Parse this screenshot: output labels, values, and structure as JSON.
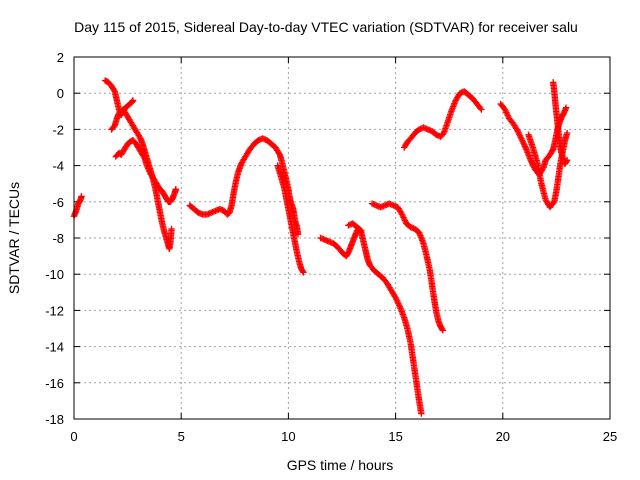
{
  "chart_data": {
    "type": "scatter",
    "title": "Day 115 of 2015, Sidereal Day-to-day VTEC variation (SDTVAR) for receiver salu",
    "xlabel": "GPS time / hours",
    "ylabel": "SDTVAR / TECUs",
    "xlim": [
      0,
      25
    ],
    "ylim": [
      -18,
      2
    ],
    "xticks": [
      0,
      5,
      10,
      15,
      20,
      25
    ],
    "yticks": [
      2,
      0,
      -2,
      -4,
      -6,
      -8,
      -10,
      -12,
      -14,
      -16,
      -18
    ],
    "grid": true,
    "marker": "plus",
    "color": "#ff0000",
    "series": [
      {
        "name": "seg1",
        "points": [
          [
            0.0,
            -6.8
          ],
          [
            0.1,
            -6.5
          ],
          [
            0.2,
            -6.1
          ],
          [
            0.3,
            -5.9
          ],
          [
            0.35,
            -5.7
          ]
        ]
      },
      {
        "name": "seg2",
        "points": [
          [
            1.45,
            0.7
          ],
          [
            1.6,
            0.6
          ],
          [
            1.75,
            0.4
          ],
          [
            1.9,
            0.1
          ],
          [
            2.0,
            -0.4
          ],
          [
            2.1,
            -0.9
          ],
          [
            2.2,
            -1.2
          ],
          [
            2.3,
            -1.0
          ],
          [
            2.4,
            -0.8
          ],
          [
            2.5,
            -0.7
          ],
          [
            2.6,
            -0.6
          ],
          [
            2.7,
            -0.5
          ],
          [
            2.75,
            -0.4
          ]
        ]
      },
      {
        "name": "seg3",
        "points": [
          [
            1.75,
            -2.0
          ],
          [
            1.9,
            -1.8
          ],
          [
            2.0,
            -1.4
          ],
          [
            2.1,
            -1.1
          ],
          [
            2.3,
            -0.9
          ],
          [
            2.5,
            -1.3
          ],
          [
            2.7,
            -1.7
          ],
          [
            2.9,
            -2.1
          ],
          [
            3.1,
            -2.5
          ],
          [
            3.2,
            -2.8
          ],
          [
            3.3,
            -3.2
          ],
          [
            3.4,
            -3.6
          ],
          [
            3.5,
            -4.0
          ],
          [
            3.6,
            -4.4
          ],
          [
            3.7,
            -4.8
          ],
          [
            3.8,
            -5.3
          ],
          [
            3.9,
            -5.9
          ],
          [
            4.0,
            -6.5
          ],
          [
            4.1,
            -7.1
          ],
          [
            4.2,
            -7.6
          ],
          [
            4.3,
            -8.0
          ],
          [
            4.4,
            -8.4
          ],
          [
            4.45,
            -8.6
          ],
          [
            4.5,
            -8.2
          ],
          [
            4.55,
            -7.5
          ]
        ]
      },
      {
        "name": "seg4",
        "points": [
          [
            1.95,
            -3.5
          ],
          [
            2.1,
            -3.3
          ],
          [
            2.2,
            -3.4
          ],
          [
            2.35,
            -3.1
          ],
          [
            2.5,
            -2.8
          ],
          [
            2.6,
            -2.7
          ],
          [
            2.75,
            -2.6
          ],
          [
            2.9,
            -2.8
          ],
          [
            3.0,
            -3.0
          ],
          [
            3.15,
            -3.3
          ],
          [
            3.3,
            -3.6
          ],
          [
            3.4,
            -4.0
          ],
          [
            3.55,
            -4.4
          ],
          [
            3.7,
            -4.7
          ],
          [
            3.85,
            -5.0
          ],
          [
            4.0,
            -5.3
          ],
          [
            4.1,
            -5.4
          ],
          [
            4.2,
            -5.6
          ],
          [
            4.3,
            -5.8
          ],
          [
            4.4,
            -6.0
          ],
          [
            4.5,
            -6.0
          ],
          [
            4.6,
            -5.8
          ],
          [
            4.7,
            -5.5
          ],
          [
            4.75,
            -5.3
          ]
        ]
      },
      {
        "name": "seg5",
        "points": [
          [
            5.4,
            -6.2
          ],
          [
            5.6,
            -6.4
          ],
          [
            5.8,
            -6.6
          ],
          [
            6.0,
            -6.7
          ],
          [
            6.2,
            -6.7
          ],
          [
            6.4,
            -6.6
          ],
          [
            6.6,
            -6.5
          ],
          [
            6.8,
            -6.4
          ],
          [
            7.0,
            -6.5
          ],
          [
            7.15,
            -6.7
          ],
          [
            7.25,
            -6.6
          ],
          [
            7.35,
            -6.2
          ],
          [
            7.45,
            -5.5
          ],
          [
            7.55,
            -4.9
          ],
          [
            7.65,
            -4.4
          ],
          [
            7.8,
            -3.9
          ],
          [
            8.0,
            -3.5
          ],
          [
            8.2,
            -3.1
          ],
          [
            8.4,
            -2.8
          ],
          [
            8.6,
            -2.6
          ],
          [
            8.8,
            -2.5
          ],
          [
            9.0,
            -2.6
          ],
          [
            9.2,
            -2.8
          ],
          [
            9.4,
            -3.0
          ],
          [
            9.6,
            -3.4
          ],
          [
            9.7,
            -3.8
          ],
          [
            9.8,
            -4.3
          ],
          [
            9.9,
            -4.8
          ],
          [
            10.0,
            -5.3
          ],
          [
            10.05,
            -5.7
          ],
          [
            10.1,
            -6.0
          ],
          [
            10.2,
            -6.3
          ],
          [
            10.25,
            -6.6
          ],
          [
            10.3,
            -7.0
          ],
          [
            10.4,
            -7.4
          ],
          [
            10.45,
            -7.8
          ]
        ]
      },
      {
        "name": "seg6",
        "points": [
          [
            9.5,
            -4.0
          ],
          [
            9.65,
            -4.6
          ],
          [
            9.8,
            -5.2
          ],
          [
            9.9,
            -5.8
          ],
          [
            10.0,
            -6.4
          ],
          [
            10.1,
            -7.0
          ],
          [
            10.2,
            -7.6
          ],
          [
            10.3,
            -8.2
          ],
          [
            10.4,
            -8.8
          ],
          [
            10.5,
            -9.3
          ],
          [
            10.6,
            -9.7
          ],
          [
            10.7,
            -9.9
          ]
        ]
      },
      {
        "name": "seg7",
        "points": [
          [
            11.5,
            -8.0
          ],
          [
            11.7,
            -8.1
          ],
          [
            11.9,
            -8.2
          ],
          [
            12.1,
            -8.3
          ],
          [
            12.3,
            -8.5
          ],
          [
            12.5,
            -8.8
          ],
          [
            12.7,
            -9.0
          ],
          [
            12.8,
            -8.8
          ],
          [
            12.9,
            -8.5
          ],
          [
            13.0,
            -8.2
          ],
          [
            13.1,
            -7.9
          ],
          [
            13.2,
            -7.6
          ],
          [
            13.3,
            -7.5
          ],
          [
            13.4,
            -7.7
          ],
          [
            13.5,
            -8.2
          ],
          [
            13.6,
            -8.7
          ],
          [
            13.7,
            -9.2
          ],
          [
            13.8,
            -9.5
          ],
          [
            14.0,
            -9.8
          ],
          [
            14.2,
            -10.0
          ],
          [
            14.4,
            -10.2
          ],
          [
            14.6,
            -10.5
          ],
          [
            14.8,
            -10.9
          ],
          [
            15.0,
            -11.3
          ],
          [
            15.2,
            -11.8
          ],
          [
            15.4,
            -12.4
          ],
          [
            15.55,
            -13.0
          ],
          [
            15.7,
            -13.8
          ],
          [
            15.8,
            -14.6
          ],
          [
            15.9,
            -15.4
          ],
          [
            16.0,
            -16.2
          ],
          [
            16.1,
            -17.0
          ],
          [
            16.2,
            -17.7
          ]
        ]
      },
      {
        "name": "seg8",
        "points": [
          [
            12.8,
            -7.3
          ],
          [
            13.0,
            -7.2
          ],
          [
            13.2,
            -7.4
          ],
          [
            13.4,
            -7.6
          ]
        ]
      },
      {
        "name": "seg9",
        "points": [
          [
            13.9,
            -6.1
          ],
          [
            14.1,
            -6.2
          ],
          [
            14.3,
            -6.3
          ],
          [
            14.5,
            -6.2
          ],
          [
            14.7,
            -6.1
          ],
          [
            14.9,
            -6.2
          ],
          [
            15.1,
            -6.3
          ],
          [
            15.3,
            -6.7
          ],
          [
            15.5,
            -7.2
          ],
          [
            15.7,
            -7.4
          ],
          [
            15.9,
            -7.5
          ],
          [
            16.1,
            -7.7
          ],
          [
            16.3,
            -8.3
          ],
          [
            16.45,
            -9.0
          ],
          [
            16.6,
            -9.8
          ],
          [
            16.7,
            -10.6
          ],
          [
            16.8,
            -11.4
          ],
          [
            16.9,
            -12.1
          ],
          [
            17.0,
            -12.6
          ],
          [
            17.1,
            -12.9
          ],
          [
            17.2,
            -13.1
          ]
        ]
      },
      {
        "name": "seg10",
        "points": [
          [
            15.4,
            -3.0
          ],
          [
            15.55,
            -2.7
          ],
          [
            15.7,
            -2.5
          ],
          [
            15.9,
            -2.2
          ],
          [
            16.1,
            -2.0
          ],
          [
            16.3,
            -1.9
          ],
          [
            16.5,
            -2.0
          ],
          [
            16.7,
            -2.1
          ],
          [
            16.9,
            -2.3
          ],
          [
            17.1,
            -2.4
          ],
          [
            17.25,
            -2.2
          ],
          [
            17.4,
            -1.7
          ],
          [
            17.6,
            -1.0
          ],
          [
            17.8,
            -0.4
          ],
          [
            18.0,
            0.0
          ],
          [
            18.2,
            0.1
          ],
          [
            18.4,
            -0.1
          ],
          [
            18.6,
            -0.3
          ],
          [
            18.8,
            -0.6
          ],
          [
            19.0,
            -0.9
          ]
        ]
      },
      {
        "name": "seg11",
        "points": [
          [
            19.9,
            -0.6
          ],
          [
            20.1,
            -0.9
          ],
          [
            20.3,
            -1.4
          ],
          [
            20.5,
            -1.7
          ],
          [
            20.7,
            -2.1
          ],
          [
            20.9,
            -2.6
          ],
          [
            21.1,
            -3.1
          ],
          [
            21.3,
            -3.7
          ],
          [
            21.5,
            -4.2
          ],
          [
            21.7,
            -4.5
          ],
          [
            21.9,
            -4.1
          ],
          [
            22.0,
            -3.7
          ],
          [
            22.2,
            -3.4
          ],
          [
            22.35,
            -3.1
          ],
          [
            22.45,
            -2.6
          ],
          [
            22.55,
            -2.0
          ],
          [
            22.65,
            -1.6
          ],
          [
            22.75,
            -1.3
          ],
          [
            22.85,
            -1.1
          ],
          [
            22.95,
            -0.8
          ]
        ]
      },
      {
        "name": "seg12",
        "points": [
          [
            21.2,
            -2.3
          ],
          [
            21.4,
            -3.0
          ],
          [
            21.6,
            -3.8
          ],
          [
            21.8,
            -5.0
          ],
          [
            22.0,
            -5.9
          ],
          [
            22.2,
            -6.3
          ],
          [
            22.4,
            -6.0
          ],
          [
            22.5,
            -5.4
          ],
          [
            22.6,
            -4.6
          ],
          [
            22.7,
            -3.8
          ],
          [
            22.8,
            -3.2
          ],
          [
            22.9,
            -2.6
          ],
          [
            23.0,
            -2.2
          ]
        ]
      },
      {
        "name": "seg13",
        "points": [
          [
            22.35,
            0.6
          ],
          [
            22.4,
            0.1
          ],
          [
            22.45,
            -0.5
          ],
          [
            22.5,
            -1.1
          ],
          [
            22.55,
            -1.6
          ],
          [
            22.6,
            -2.2
          ],
          [
            22.65,
            -2.7
          ],
          [
            22.7,
            -3.1
          ],
          [
            22.8,
            -3.6
          ],
          [
            22.9,
            -3.9
          ],
          [
            23.0,
            -3.7
          ]
        ]
      }
    ]
  }
}
